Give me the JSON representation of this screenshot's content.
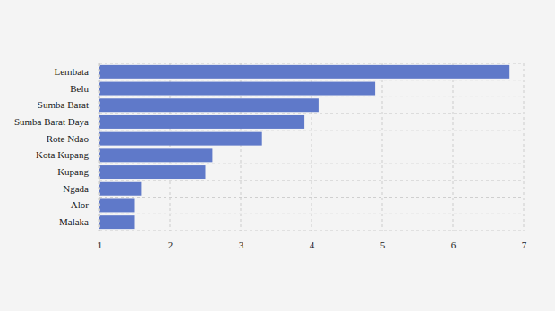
{
  "chart_data": {
    "type": "bar",
    "orientation": "horizontal",
    "categories": [
      "Lembata",
      "Belu",
      "Sumba Barat",
      "Sumba Barat Daya",
      "Rote Ndao",
      "Kota Kupang",
      "Kupang",
      "Ngada",
      "Alor",
      "Malaka"
    ],
    "values": [
      6.8,
      4.9,
      4.1,
      3.9,
      3.3,
      2.6,
      2.5,
      1.6,
      1.5,
      1.5
    ],
    "color": "#5f79c9",
    "xlim": [
      1,
      7
    ],
    "xticks": [
      1,
      2,
      3,
      4,
      5,
      6,
      7
    ],
    "grid": true
  }
}
